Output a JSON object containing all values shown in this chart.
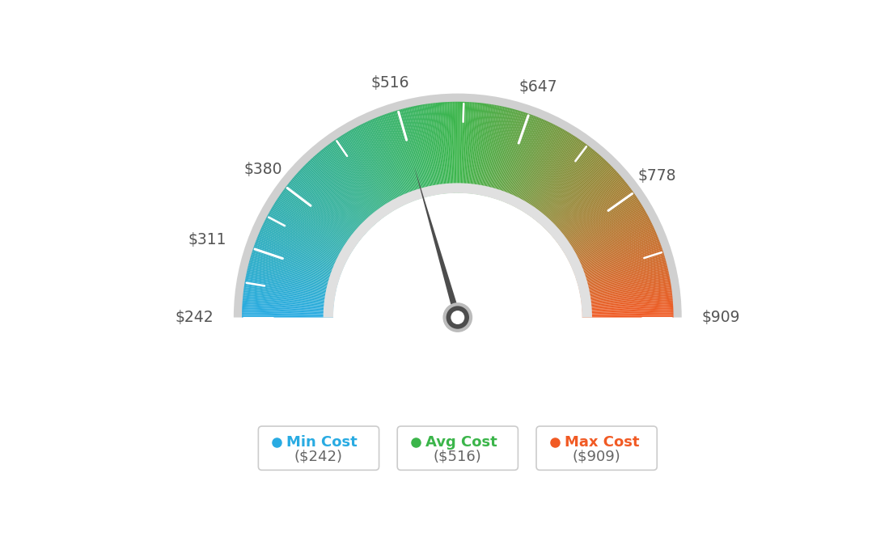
{
  "min_val": 242,
  "max_val": 909,
  "avg_val": 516,
  "tick_labels": [
    "$242",
    "$311",
    "$380",
    "$516",
    "$647",
    "$778",
    "$909"
  ],
  "tick_values": [
    242,
    311,
    380,
    516,
    647,
    778,
    909
  ],
  "legend": [
    {
      "label": "Min Cost",
      "color": "#29ABE2",
      "value": "($242)"
    },
    {
      "label": "Avg Cost",
      "color": "#3BB54A",
      "value": "($516)"
    },
    {
      "label": "Max Cost",
      "color": "#F15A24",
      "value": "($909)"
    }
  ],
  "background_color": "#ffffff",
  "needle_color": "#4d4d4d",
  "outer_border_color": "#d0d0d0",
  "inner_border_color": "#e0e0e0"
}
